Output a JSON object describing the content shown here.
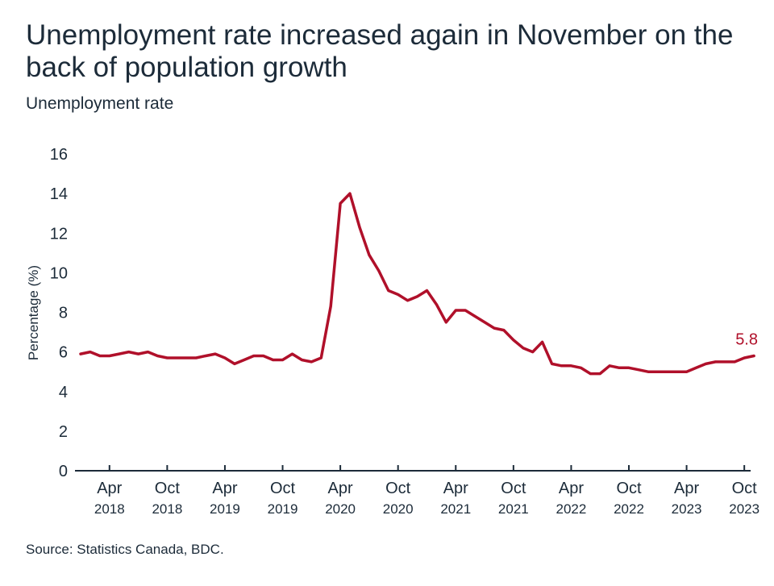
{
  "title": "Unemployment rate increased again in November on the back of population growth",
  "subtitle": "Unemployment rate",
  "source": "Source: Statistics Canada, BDC.",
  "colors": {
    "line": "#b0102a",
    "text": "#1c2b39",
    "axis": "#1c2b39"
  },
  "chart_data": {
    "type": "line",
    "title": "Unemployment rate increased again in November on the back of population growth",
    "subtitle": "Unemployment rate",
    "ylabel": "Percentage (%)",
    "xlabel": "",
    "ylim": [
      0,
      16
    ],
    "yticks": [
      0,
      2,
      4,
      6,
      8,
      10,
      12,
      14,
      16
    ],
    "grid": false,
    "xticks": [
      {
        "month": "Apr",
        "year": "2018",
        "date": "2018-04"
      },
      {
        "month": "Oct",
        "year": "2018",
        "date": "2018-10"
      },
      {
        "month": "Apr",
        "year": "2019",
        "date": "2019-04"
      },
      {
        "month": "Oct",
        "year": "2019",
        "date": "2019-10"
      },
      {
        "month": "Apr",
        "year": "2020",
        "date": "2020-04"
      },
      {
        "month": "Oct",
        "year": "2020",
        "date": "2020-10"
      },
      {
        "month": "Apr",
        "year": "2021",
        "date": "2021-04"
      },
      {
        "month": "Oct",
        "year": "2021",
        "date": "2021-10"
      },
      {
        "month": "Apr",
        "year": "2022",
        "date": "2022-04"
      },
      {
        "month": "Oct",
        "year": "2022",
        "date": "2022-10"
      },
      {
        "month": "Apr",
        "year": "2023",
        "date": "2023-04"
      },
      {
        "month": "Oct",
        "year": "2023",
        "date": "2023-10"
      }
    ],
    "x": [
      "2018-01",
      "2018-02",
      "2018-03",
      "2018-04",
      "2018-05",
      "2018-06",
      "2018-07",
      "2018-08",
      "2018-09",
      "2018-10",
      "2018-11",
      "2018-12",
      "2019-01",
      "2019-02",
      "2019-03",
      "2019-04",
      "2019-05",
      "2019-06",
      "2019-07",
      "2019-08",
      "2019-09",
      "2019-10",
      "2019-11",
      "2019-12",
      "2020-01",
      "2020-02",
      "2020-03",
      "2020-04",
      "2020-05",
      "2020-06",
      "2020-07",
      "2020-08",
      "2020-09",
      "2020-10",
      "2020-11",
      "2020-12",
      "2021-01",
      "2021-02",
      "2021-03",
      "2021-04",
      "2021-05",
      "2021-06",
      "2021-07",
      "2021-08",
      "2021-09",
      "2021-10",
      "2021-11",
      "2021-12",
      "2022-01",
      "2022-02",
      "2022-03",
      "2022-04",
      "2022-05",
      "2022-06",
      "2022-07",
      "2022-08",
      "2022-09",
      "2022-10",
      "2022-11",
      "2022-12",
      "2023-01",
      "2023-02",
      "2023-03",
      "2023-04",
      "2023-05",
      "2023-06",
      "2023-07",
      "2023-08",
      "2023-09",
      "2023-10",
      "2023-11"
    ],
    "series": [
      {
        "values": [
          5.9,
          6.0,
          5.8,
          5.8,
          5.9,
          6.0,
          5.9,
          6.0,
          5.8,
          5.7,
          5.7,
          5.7,
          5.7,
          5.8,
          5.9,
          5.7,
          5.4,
          5.6,
          5.8,
          5.8,
          5.6,
          5.6,
          5.9,
          5.6,
          5.5,
          5.7,
          8.3,
          13.5,
          14.0,
          12.3,
          10.9,
          10.1,
          9.1,
          8.9,
          8.6,
          8.8,
          9.1,
          8.4,
          7.5,
          8.1,
          8.1,
          7.8,
          7.5,
          7.2,
          7.1,
          6.6,
          6.2,
          6.0,
          6.5,
          5.4,
          5.3,
          5.3,
          5.2,
          4.9,
          4.9,
          5.3,
          5.2,
          5.2,
          5.1,
          5.0,
          5.0,
          5.0,
          5.0,
          5.0,
          5.2,
          5.4,
          5.5,
          5.5,
          5.5,
          5.7,
          5.8
        ]
      }
    ],
    "annotations": [
      {
        "date": "2023-11",
        "value": 5.8,
        "label": "5.8"
      }
    ]
  }
}
